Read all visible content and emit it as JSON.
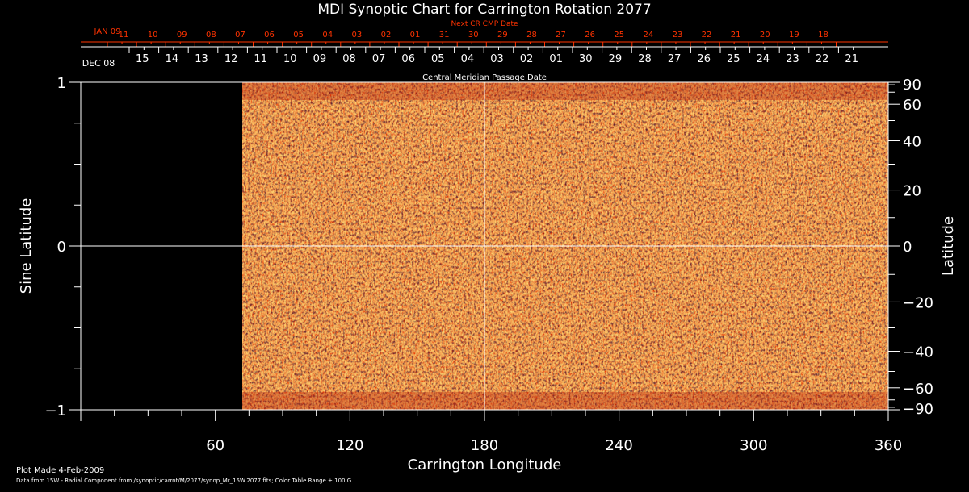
{
  "chart_data": {
    "type": "heatmap",
    "title": "MDI Synoptic Chart for Carrington Rotation 2077",
    "xlabel": "Carrington Longitude",
    "ylabel_left": "Sine Latitude",
    "ylabel_right": "Latitude",
    "xlim": [
      0,
      360
    ],
    "ylim": [
      -1,
      1
    ],
    "x_ticks": [
      "60",
      "120",
      "180",
      "240",
      "300",
      "360"
    ],
    "y_left_ticks": [
      "1",
      "0",
      "−1"
    ],
    "y_right_ticks": [
      "90",
      "60",
      "40",
      "20",
      "0",
      "−20",
      "−40",
      "−60",
      "−90"
    ],
    "y_right_tick_values": [
      90,
      60,
      40,
      20,
      0,
      -20,
      -40,
      -60,
      -90
    ],
    "data_start_longitude": 72,
    "top_axis_label": "Next CR CMP Date",
    "top_axis_start": "JAN 09",
    "top_axis_dates": [
      "11",
      "10",
      "09",
      "08",
      "07",
      "06",
      "05",
      "04",
      "03",
      "02",
      "01",
      "31",
      "30",
      "29",
      "28",
      "27",
      "26",
      "25",
      "24",
      "23",
      "22",
      "21",
      "20",
      "19",
      "18"
    ],
    "bottom_axis_label": "Central Meridian Passage Date",
    "bottom_axis_start": "DEC 08",
    "bottom_axis_dates": [
      "15",
      "14",
      "13",
      "12",
      "11",
      "10",
      "09",
      "08",
      "07",
      "06",
      "05",
      "04",
      "03",
      "02",
      "01",
      "30",
      "29",
      "28",
      "27",
      "26",
      "25",
      "24",
      "23",
      "22",
      "21"
    ],
    "colorscale": [
      "#13001e",
      "#5a0a1e",
      "#b41e0a",
      "#ff5500",
      "#ff9933",
      "#ffdd66",
      "#ffffcc"
    ],
    "background_color": "#000000",
    "axis_color": "#ffffff",
    "date_axis_color": "#ff3300",
    "grid": false
  },
  "footer": {
    "plot_made": "Plot Made  4-Feb-2009",
    "data_line": "Data from 15W - Radial Component from /synoptic/carrot/M/2077/synop_Mr_15W.2077.fits; Color Table Range ± 100 G"
  }
}
